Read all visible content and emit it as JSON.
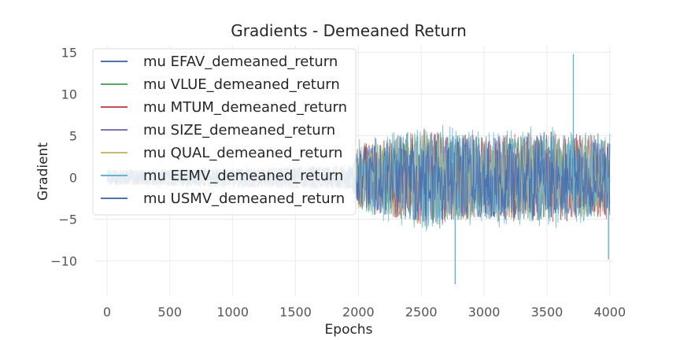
{
  "chart_data": {
    "type": "line",
    "title": "Gradients - Demeaned Return",
    "xlabel": "Epochs",
    "ylabel": "Gradient",
    "xlim": [
      -100,
      4020
    ],
    "ylim": [
      -14.2,
      15.8
    ],
    "xticks": [
      0,
      500,
      1000,
      1500,
      2000,
      2500,
      3000,
      3500,
      4000
    ],
    "yticks": [
      -10,
      -5,
      0,
      5,
      10,
      15
    ],
    "grid": true,
    "legend_position": "upper-left",
    "series": [
      {
        "name": "mu EFAV_demeaned_return",
        "color": "#4c72b0",
        "amplitude_envelope": [
          [
            0,
            0.9
          ],
          [
            1950,
            1.4
          ],
          [
            2000,
            3.8
          ],
          [
            2500,
            5.8
          ],
          [
            3000,
            5.0
          ],
          [
            3500,
            5.2
          ],
          [
            4000,
            4.5
          ]
        ]
      },
      {
        "name": "mu VLUE_demeaned_return",
        "color": "#55a868",
        "amplitude_envelope": [
          [
            0,
            0.9
          ],
          [
            1950,
            1.4
          ],
          [
            2000,
            3.8
          ],
          [
            2500,
            5.8
          ],
          [
            3000,
            5.0
          ],
          [
            3500,
            5.2
          ],
          [
            4000,
            4.5
          ]
        ]
      },
      {
        "name": "mu MTUM_demeaned_return",
        "color": "#c44e52",
        "amplitude_envelope": [
          [
            0,
            0.9
          ],
          [
            1950,
            1.4
          ],
          [
            2000,
            4.2
          ],
          [
            2500,
            6.0
          ],
          [
            3000,
            5.2
          ],
          [
            3500,
            5.5
          ],
          [
            4000,
            5.0
          ]
        ]
      },
      {
        "name": "mu SIZE_demeaned_return",
        "color": "#8172b2",
        "amplitude_envelope": [
          [
            0,
            0.9
          ],
          [
            1950,
            1.4
          ],
          [
            2000,
            3.8
          ],
          [
            2500,
            5.6
          ],
          [
            3000,
            5.0
          ],
          [
            3500,
            5.2
          ],
          [
            4000,
            4.5
          ]
        ]
      },
      {
        "name": "mu QUAL_demeaned_return",
        "color": "#ccb974",
        "amplitude_envelope": [
          [
            0,
            0.9
          ],
          [
            1950,
            1.4
          ],
          [
            2000,
            3.8
          ],
          [
            2500,
            5.6
          ],
          [
            3000,
            5.0
          ],
          [
            3500,
            5.2
          ],
          [
            4000,
            4.5
          ]
        ]
      },
      {
        "name": "mu EEMV_demeaned_return",
        "color": "#64b5cd",
        "amplitude_envelope": [
          [
            0,
            1.1
          ],
          [
            1950,
            1.6
          ],
          [
            2000,
            4.6
          ],
          [
            2500,
            6.5
          ],
          [
            3000,
            6.0
          ],
          [
            3500,
            6.2
          ],
          [
            4000,
            5.5
          ]
        ]
      },
      {
        "name": "mu USMV_demeaned_return",
        "color": "#4c72b0",
        "amplitude_envelope": [
          [
            0,
            0.8
          ],
          [
            1950,
            1.3
          ],
          [
            2000,
            3.6
          ],
          [
            2500,
            5.4
          ],
          [
            3000,
            4.8
          ],
          [
            3500,
            5.0
          ],
          [
            4000,
            4.3
          ]
        ]
      }
    ],
    "notable_points": [
      {
        "x": 2770,
        "y": -12.8
      },
      {
        "x": 3710,
        "y": 14.8
      },
      {
        "x": 3990,
        "y": -9.8
      }
    ]
  }
}
